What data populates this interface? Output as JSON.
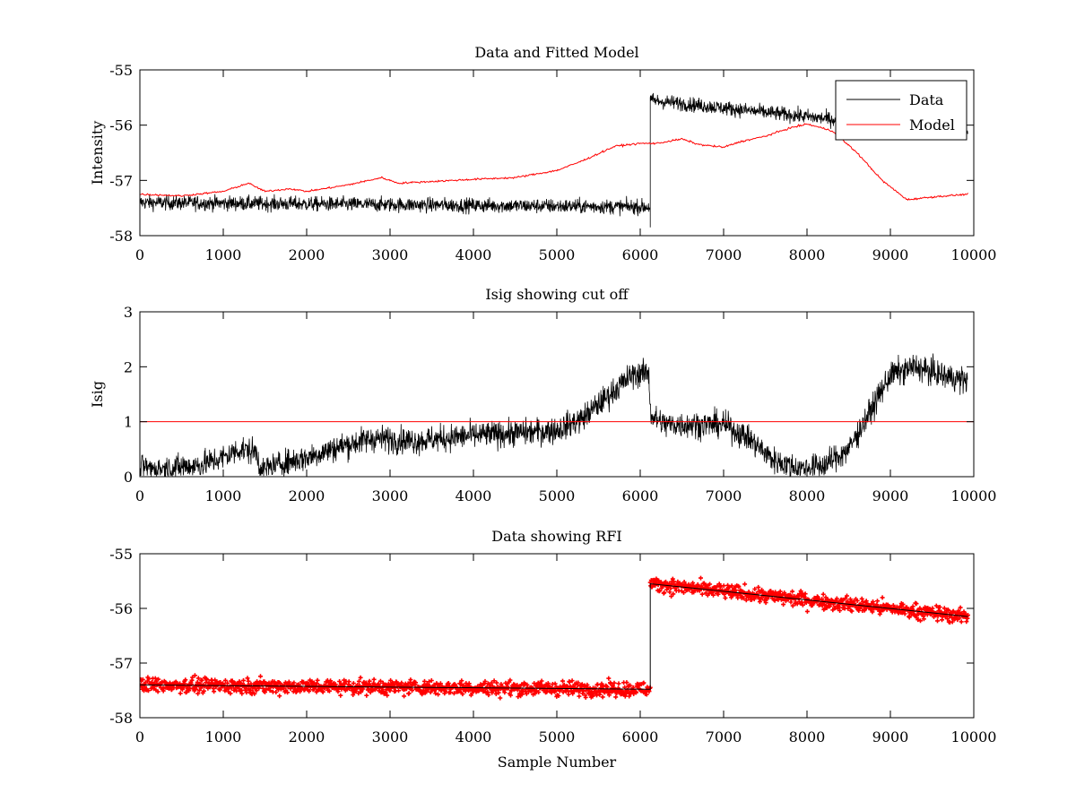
{
  "colors": {
    "data": "#000000",
    "model": "#ff0000",
    "cutoff": "#ff0000",
    "rfi": "#ff0000",
    "axes": "#000000",
    "background": "#ffffff"
  },
  "chart_data": [
    {
      "type": "line",
      "title": "Data and Fitted Model",
      "xlabel": "",
      "ylabel": "Intensity",
      "xlim": [
        0,
        10000
      ],
      "ylim": [
        -58,
        -55
      ],
      "xticks": [
        0,
        1000,
        2000,
        3000,
        4000,
        5000,
        6000,
        7000,
        8000,
        9000,
        10000
      ],
      "yticks": [
        -55,
        -56,
        -57,
        -58
      ],
      "xtick_labels": [
        "0",
        "1000",
        "2000",
        "3000",
        "4000",
        "5000",
        "6000",
        "7000",
        "8000",
        "9000",
        "10000"
      ],
      "ytick_labels": [
        "-55",
        "-56",
        "-57",
        "-58"
      ],
      "legend": {
        "placement": "top-right",
        "entries": [
          "Data",
          "Model"
        ]
      },
      "series": [
        {
          "name": "Data",
          "color": "#000000",
          "style": "noisy",
          "x_range": [
            0,
            9930
          ],
          "noise": 0.12,
          "segments": [
            {
              "x": [
                0,
                6120
              ],
              "y": [
                -57.4,
                -57.48
              ]
            },
            {
              "x": [
                6120,
                9930
              ],
              "y": [
                -55.55,
                -56.15
              ]
            }
          ],
          "spike_below_at_x": 6120,
          "spike_below_to_y": -57.85
        },
        {
          "name": "Model",
          "color": "#ff0000",
          "style": "smooth",
          "x": [
            0,
            500,
            1000,
            1300,
            1500,
            1800,
            2000,
            2500,
            2900,
            3100,
            3500,
            4000,
            4500,
            5000,
            5300,
            5700,
            6000,
            6200,
            6500,
            6700,
            7000,
            7200,
            7500,
            7800,
            8000,
            8300,
            8600,
            8900,
            9200,
            9500,
            9930
          ],
          "y": [
            -57.25,
            -57.28,
            -57.2,
            -57.05,
            -57.2,
            -57.15,
            -57.2,
            -57.08,
            -56.95,
            -57.05,
            -57.02,
            -56.98,
            -56.95,
            -56.82,
            -56.65,
            -56.38,
            -56.33,
            -56.33,
            -56.25,
            -56.35,
            -56.4,
            -56.3,
            -56.2,
            -56.05,
            -55.98,
            -56.1,
            -56.5,
            -57.0,
            -57.35,
            -57.3,
            -57.25
          ]
        }
      ]
    },
    {
      "type": "line",
      "title": "Isig showing cut off",
      "xlabel": "",
      "ylabel": "Isig",
      "xlim": [
        0,
        10000
      ],
      "ylim": [
        0,
        3
      ],
      "xticks": [
        0,
        1000,
        2000,
        3000,
        4000,
        5000,
        6000,
        7000,
        8000,
        9000,
        10000
      ],
      "yticks": [
        0,
        1,
        2,
        3
      ],
      "xtick_labels": [
        "0",
        "1000",
        "2000",
        "3000",
        "4000",
        "5000",
        "6000",
        "7000",
        "8000",
        "9000",
        "10000"
      ],
      "ytick_labels": [
        "0",
        "1",
        "2",
        "3"
      ],
      "series": [
        {
          "name": "Isig",
          "color": "#000000",
          "style": "noisy",
          "noise": 0.22,
          "clip_min": 0,
          "x": [
            0,
            300,
            700,
            1000,
            1200,
            1400,
            1450,
            1600,
            2000,
            2400,
            2800,
            3300,
            4000,
            4600,
            5000,
            5300,
            5600,
            5900,
            6100,
            6130,
            6300,
            6600,
            7000,
            7300,
            7600,
            7900,
            8200,
            8500,
            8800,
            9000,
            9300,
            9600,
            9930
          ],
          "y": [
            0.15,
            0.15,
            0.2,
            0.35,
            0.5,
            0.45,
            0.1,
            0.2,
            0.35,
            0.55,
            0.7,
            0.65,
            0.75,
            0.8,
            0.85,
            1.05,
            1.45,
            1.85,
            1.9,
            1.1,
            0.95,
            0.95,
            0.95,
            0.7,
            0.3,
            0.15,
            0.2,
            0.5,
            1.3,
            1.85,
            2.0,
            1.85,
            1.75
          ]
        },
        {
          "name": "",
          "color": "#ff0000",
          "style": "hline",
          "y_value": 1
        }
      ]
    },
    {
      "type": "scatter",
      "title": "Data showing RFI",
      "xlabel": "Sample Number",
      "ylabel": "",
      "xlim": [
        0,
        10000
      ],
      "ylim": [
        -58,
        -55
      ],
      "xticks": [
        0,
        1000,
        2000,
        3000,
        4000,
        5000,
        6000,
        7000,
        8000,
        9000,
        10000
      ],
      "yticks": [
        -55,
        -56,
        -57,
        -58
      ],
      "xtick_labels": [
        "0",
        "1000",
        "2000",
        "3000",
        "4000",
        "5000",
        "6000",
        "7000",
        "8000",
        "9000",
        "10000"
      ],
      "ytick_labels": [
        "-55",
        "-56",
        "-57",
        "-58"
      ],
      "series": [
        {
          "name": "",
          "color": "#ff0000",
          "style": "markers",
          "noise": 0.12,
          "segments": [
            {
              "x": [
                0,
                6120
              ],
              "y": [
                -57.4,
                -57.48
              ]
            },
            {
              "x": [
                6120,
                9930
              ],
              "y": [
                -55.55,
                -56.15
              ]
            }
          ]
        },
        {
          "name": "",
          "color": "#000000",
          "style": "step-line",
          "x": [
            0,
            6120,
            6120,
            9930
          ],
          "y": [
            -57.4,
            -57.48,
            -55.55,
            -56.15
          ]
        }
      ]
    }
  ]
}
